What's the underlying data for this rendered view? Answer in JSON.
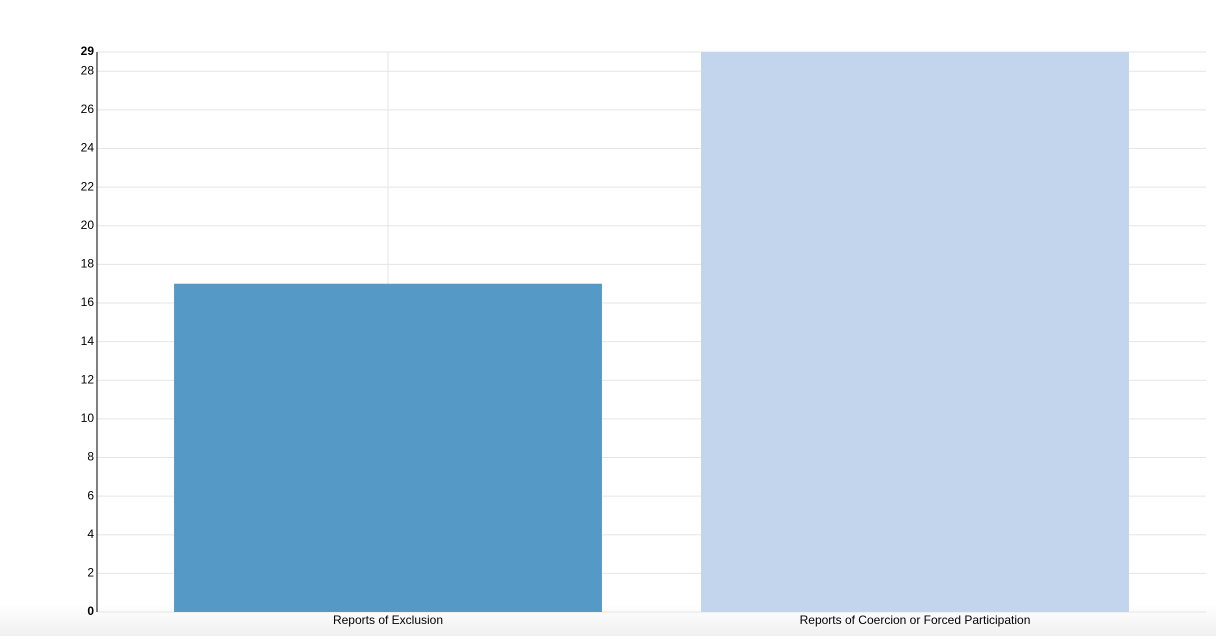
{
  "chart_data": {
    "type": "bar",
    "categories": [
      "Reports of Exclusion",
      "Reports of Coercion or Forced Participation"
    ],
    "values": [
      17,
      29
    ],
    "colors": [
      "#5599c7",
      "#c2d5ec"
    ],
    "ylim": [
      0,
      29
    ],
    "yticks": [
      0,
      2,
      4,
      6,
      8,
      10,
      12,
      14,
      16,
      18,
      20,
      22,
      24,
      26,
      28,
      29
    ],
    "grid": true
  }
}
